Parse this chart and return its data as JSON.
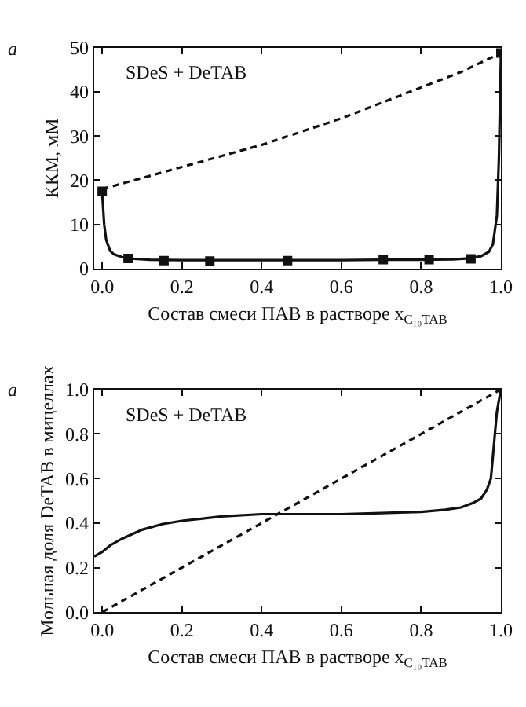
{
  "chart_data": [
    {
      "type": "line",
      "xlabel": "Состав смеси ПАВ в растворе x$_{C₁₀TAB}$",
      "ylabel": "ККМ, мМ",
      "annotations": [
        "а",
        "SDeS + DeTAB"
      ],
      "xlim": [
        -0.02,
        1.0
      ],
      "xticks": [
        {
          "value": 0,
          "label": "0.0"
        },
        {
          "value": 0.2,
          "label": "0.2"
        },
        {
          "value": 0.4,
          "label": "0.4"
        },
        {
          "value": 0.6,
          "label": "0.6"
        },
        {
          "value": 0.8,
          "label": "0.8"
        },
        {
          "value": 1,
          "label": "1.0"
        }
      ],
      "ylim": [
        0,
        50
      ],
      "yticks": [
        0,
        10,
        20,
        30,
        40,
        50
      ],
      "series": [
        {
          "type": "scatter",
          "color": "#111111",
          "marker": "square",
          "x": [
            0,
            0.065,
            0.155,
            0.27,
            0.465,
            0.705,
            0.82,
            0.925,
            1.0
          ],
          "values": [
            17.5,
            2.3,
            1.8,
            1.7,
            1.8,
            2.0,
            2.0,
            2.2,
            48.8
          ]
        },
        {
          "color": "#111111",
          "line_style": "solid",
          "x": [
            0,
            0.005,
            0.01,
            0.02,
            0.03,
            0.05,
            0.08,
            0.12,
            0.2,
            0.3,
            0.4,
            0.5,
            0.6,
            0.7,
            0.8,
            0.88,
            0.92,
            0.95,
            0.97,
            0.98,
            0.99,
            0.995,
            1.0
          ],
          "values": [
            17,
            10,
            6.5,
            4,
            3.2,
            2.6,
            2.2,
            2.0,
            1.9,
            1.9,
            1.9,
            1.9,
            1.9,
            2.0,
            2.0,
            2.1,
            2.3,
            2.8,
            3.8,
            5.5,
            12,
            25,
            48
          ]
        },
        {
          "color": "#111111",
          "line_style": "dashed",
          "x": [
            0,
            0.1,
            0.2,
            0.3,
            0.4,
            0.5,
            0.6,
            0.7,
            0.8,
            0.9,
            1.0
          ],
          "values": [
            18,
            20.5,
            23,
            25.5,
            28,
            31,
            34,
            37.5,
            41,
            44.5,
            48.8
          ]
        }
      ]
    },
    {
      "type": "line",
      "xlabel": "Состав смеси ПАВ в растворе x$_{C₁₀TAB}$",
      "ylabel": "Мольная доля DeTAB в мицеллах",
      "annotations": [
        "а",
        "SDeS + DeTAB"
      ],
      "xlim": [
        -0.02,
        1.0
      ],
      "xticks": [
        {
          "value": 0,
          "label": "0.0"
        },
        {
          "value": 0.2,
          "label": "0.2"
        },
        {
          "value": 0.4,
          "label": "0.4"
        },
        {
          "value": 0.6,
          "label": "0.6"
        },
        {
          "value": 0.8,
          "label": "0.8"
        },
        {
          "value": 1,
          "label": "1.0"
        }
      ],
      "ylim": [
        0,
        1
      ],
      "yticks": [
        {
          "value": 0,
          "label": "0.0"
        },
        {
          "value": 0.2,
          "label": "0.2"
        },
        {
          "value": 0.4,
          "label": "0.4"
        },
        {
          "value": 0.6,
          "label": "0.6"
        },
        {
          "value": 0.8,
          "label": "0.8"
        },
        {
          "value": 1,
          "label": "1.0"
        }
      ],
      "series": [
        {
          "color": "#111111",
          "line_style": "solid",
          "x": [
            -0.02,
            0,
            0.02,
            0.05,
            0.1,
            0.15,
            0.2,
            0.3,
            0.4,
            0.5,
            0.6,
            0.7,
            0.8,
            0.86,
            0.9,
            0.93,
            0.95,
            0.965,
            0.975,
            0.98,
            0.985,
            0.99,
            1.0
          ],
          "values": [
            0.25,
            0.27,
            0.3,
            0.33,
            0.37,
            0.395,
            0.41,
            0.43,
            0.44,
            0.44,
            0.44,
            0.445,
            0.45,
            0.46,
            0.47,
            0.49,
            0.51,
            0.55,
            0.6,
            0.7,
            0.8,
            0.9,
            1.0
          ]
        },
        {
          "color": "#111111",
          "line_style": "dashed",
          "x": [
            0,
            1
          ],
          "values": [
            0,
            1
          ]
        }
      ]
    }
  ]
}
